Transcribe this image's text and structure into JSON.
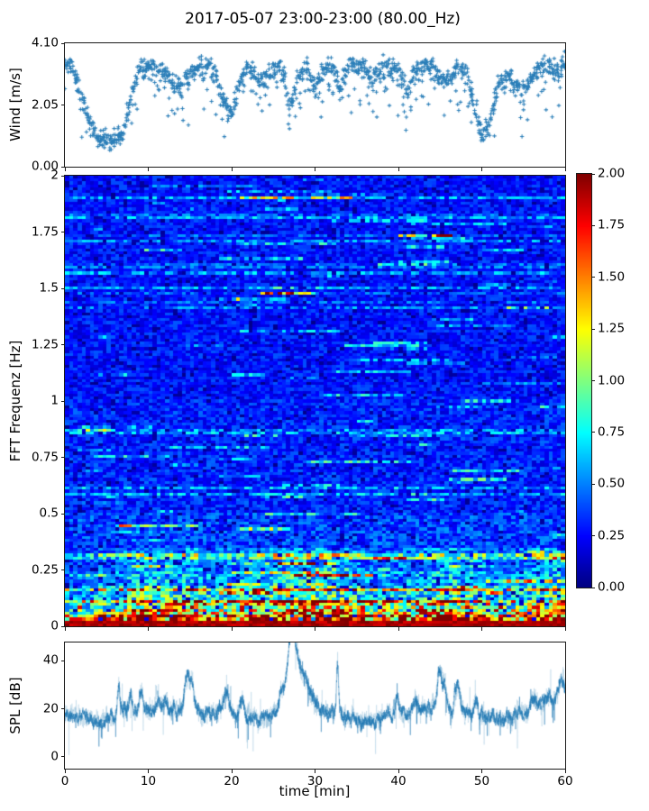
{
  "figure": {
    "title": "2017-05-07 23:00-23:00 (80.00_Hz)",
    "background_color": "#ffffff",
    "accent_color": "#1f77b4"
  },
  "wind_plot": {
    "ylabel": "Wind [m/s]",
    "ytick_labels": [
      "0.00",
      "2.05",
      "4.10"
    ],
    "ytick_values": [
      0,
      2.05,
      4.1
    ],
    "ylim": [
      0,
      4.1
    ],
    "marker": "+",
    "marker_color": "#1f77b4"
  },
  "spectrogram": {
    "ylabel": "FFT Frequenz [Hz]",
    "ytick_labels": [
      "0",
      "0.25",
      "0.5",
      "0.75",
      "1",
      "1.25",
      "1.5",
      "1.75",
      "2"
    ],
    "ytick_values": [
      0,
      0.25,
      0.5,
      0.75,
      1,
      1.25,
      1.5,
      1.75,
      2
    ],
    "ylim": [
      0,
      2
    ],
    "colormap": "jet"
  },
  "colorbar": {
    "tick_labels": [
      "0.00",
      "0.25",
      "0.50",
      "0.75",
      "1.00",
      "1.25",
      "1.50",
      "1.75",
      "2.00"
    ],
    "tick_values": [
      0,
      0.25,
      0.5,
      0.75,
      1,
      1.25,
      1.5,
      1.75,
      2
    ],
    "range": [
      0,
      2
    ],
    "colormap": "jet"
  },
  "spl_plot": {
    "ylabel": "SPL [dB]",
    "xlabel": "time [min]",
    "ytick_labels": [
      "0",
      "20",
      "40"
    ],
    "ytick_values": [
      0,
      20,
      40
    ],
    "ylim": [
      -4.9,
      47.6
    ],
    "xtick_labels": [
      "0",
      "10",
      "20",
      "30",
      "40",
      "50",
      "60"
    ],
    "xtick_values": [
      0,
      10,
      20,
      30,
      40,
      50,
      60
    ],
    "xlim": [
      0,
      60
    ],
    "line_color": "#1f77b4"
  },
  "chart_data": [
    {
      "id": "wind_speed_scatter",
      "type": "scatter",
      "title": "Wind speed vs time",
      "xlabel": "time [min]",
      "ylabel": "Wind [m/s]",
      "x_range": [
        0,
        60
      ],
      "y_range": [
        0,
        4.1
      ],
      "marker": "+",
      "color": "#1f77b4",
      "points_approx": 1400,
      "minute_mean_wind": [
        3.4,
        3.2,
        2.4,
        1.5,
        1.1,
        1.0,
        1.0,
        1.2,
        2.4,
        3.2,
        3.3,
        3.3,
        3.1,
        2.8,
        2.7,
        3.1,
        3.4,
        3.4,
        3.2,
        2.3,
        1.7,
        2.9,
        3.3,
        3.0,
        2.9,
        3.3,
        3.4,
        2.0,
        3.0,
        3.4,
        2.6,
        3.2,
        3.4,
        2.7,
        3.3,
        3.4,
        3.3,
        2.9,
        3.4,
        3.3,
        3.3,
        2.5,
        3.2,
        3.4,
        3.3,
        3.0,
        2.9,
        3.2,
        3.3,
        2.2,
        1.2,
        1.6,
        2.7,
        3.0,
        2.8,
        2.6,
        3.0,
        3.3,
        3.4,
        3.2,
        3.5
      ]
    },
    {
      "id": "fft_spectrogram",
      "type": "heatmap",
      "title": "FFT spectrogram",
      "xlabel": "time [min]",
      "ylabel": "FFT Frequenz [Hz]",
      "x_range": [
        0,
        60
      ],
      "y_range": [
        0,
        2
      ],
      "value_range": [
        0,
        2
      ],
      "colormap": "jet",
      "mean_value_by_freq_band": [
        [
          0.025,
          1.9
        ],
        [
          0.05,
          1.45
        ],
        [
          0.08,
          1.1
        ],
        [
          0.12,
          0.85
        ],
        [
          0.18,
          0.65
        ],
        [
          0.25,
          0.5
        ],
        [
          0.35,
          0.42
        ],
        [
          0.5,
          0.36
        ],
        [
          1.0,
          0.3
        ],
        [
          2.0,
          0.27
        ]
      ],
      "low_freq_activity_by_minute": [
        0.8,
        0.8,
        0.8,
        0.85,
        0.95,
        1.0,
        1.0,
        1.05,
        1.25,
        1.3,
        1.3,
        1.25,
        1.2,
        1.2,
        1.25,
        1.3,
        1.2,
        1.05,
        1.0,
        1.05,
        1.0,
        1.1,
        1.1,
        1.15,
        1.2,
        1.35,
        1.4,
        1.45,
        1.4,
        1.35,
        1.3,
        1.3,
        1.35,
        1.3,
        1.2,
        1.1,
        1.0,
        0.95,
        1.0,
        1.0,
        1.05,
        1.1,
        1.15,
        1.2,
        1.25,
        1.35,
        1.3,
        1.35,
        1.25,
        1.1,
        1.0,
        0.9,
        0.9,
        0.95,
        1.05,
        1.1,
        1.15,
        1.2,
        1.3,
        1.35,
        1.3
      ]
    },
    {
      "id": "spl_line",
      "type": "line",
      "title": "Sound pressure level vs time",
      "xlabel": "time [min]",
      "ylabel": "SPL [dB]",
      "x_range": [
        0,
        60
      ],
      "ylim": [
        -4.9,
        47.6
      ],
      "color": "#1f77b4",
      "baseline_spl_by_minute": [
        17,
        17,
        16,
        16,
        15,
        16,
        17,
        18,
        19,
        19,
        19,
        19,
        18,
        19,
        20,
        20,
        18,
        17,
        18,
        19,
        18,
        17,
        17,
        16,
        17,
        18,
        20,
        22,
        21,
        19,
        18,
        18,
        18,
        17,
        16,
        15,
        16,
        15,
        17,
        18,
        18,
        18,
        19,
        19,
        20,
        20,
        19,
        19,
        18,
        17,
        17,
        17,
        15,
        16,
        18,
        19,
        19,
        20,
        21,
        21,
        20
      ],
      "peaks_t_amp_sigma": [
        [
          6.5,
          12,
          0.18
        ],
        [
          7.9,
          7,
          0.2
        ],
        [
          9.2,
          9,
          0.25
        ],
        [
          11.1,
          6,
          0.2
        ],
        [
          12.1,
          6,
          0.25
        ],
        [
          14.7,
          15,
          0.28
        ],
        [
          15.3,
          12,
          0.2
        ],
        [
          19.4,
          9,
          0.3
        ],
        [
          21.2,
          7,
          0.25
        ],
        [
          26.0,
          6,
          0.3
        ],
        [
          27.2,
          23,
          0.45
        ],
        [
          27.8,
          12,
          0.9
        ],
        [
          29.0,
          6,
          0.8
        ],
        [
          32.7,
          21,
          0.13
        ],
        [
          39.8,
          6,
          0.25
        ],
        [
          42.0,
          5,
          0.25
        ],
        [
          44.9,
          15,
          0.22
        ],
        [
          45.5,
          11,
          0.28
        ],
        [
          47.1,
          13,
          0.3
        ],
        [
          49.3,
          6,
          0.2
        ],
        [
          56.3,
          6,
          0.3
        ],
        [
          58.0,
          6,
          0.3
        ],
        [
          59.4,
          10,
          0.35
        ],
        [
          60.0,
          6,
          0.3
        ]
      ]
    }
  ]
}
